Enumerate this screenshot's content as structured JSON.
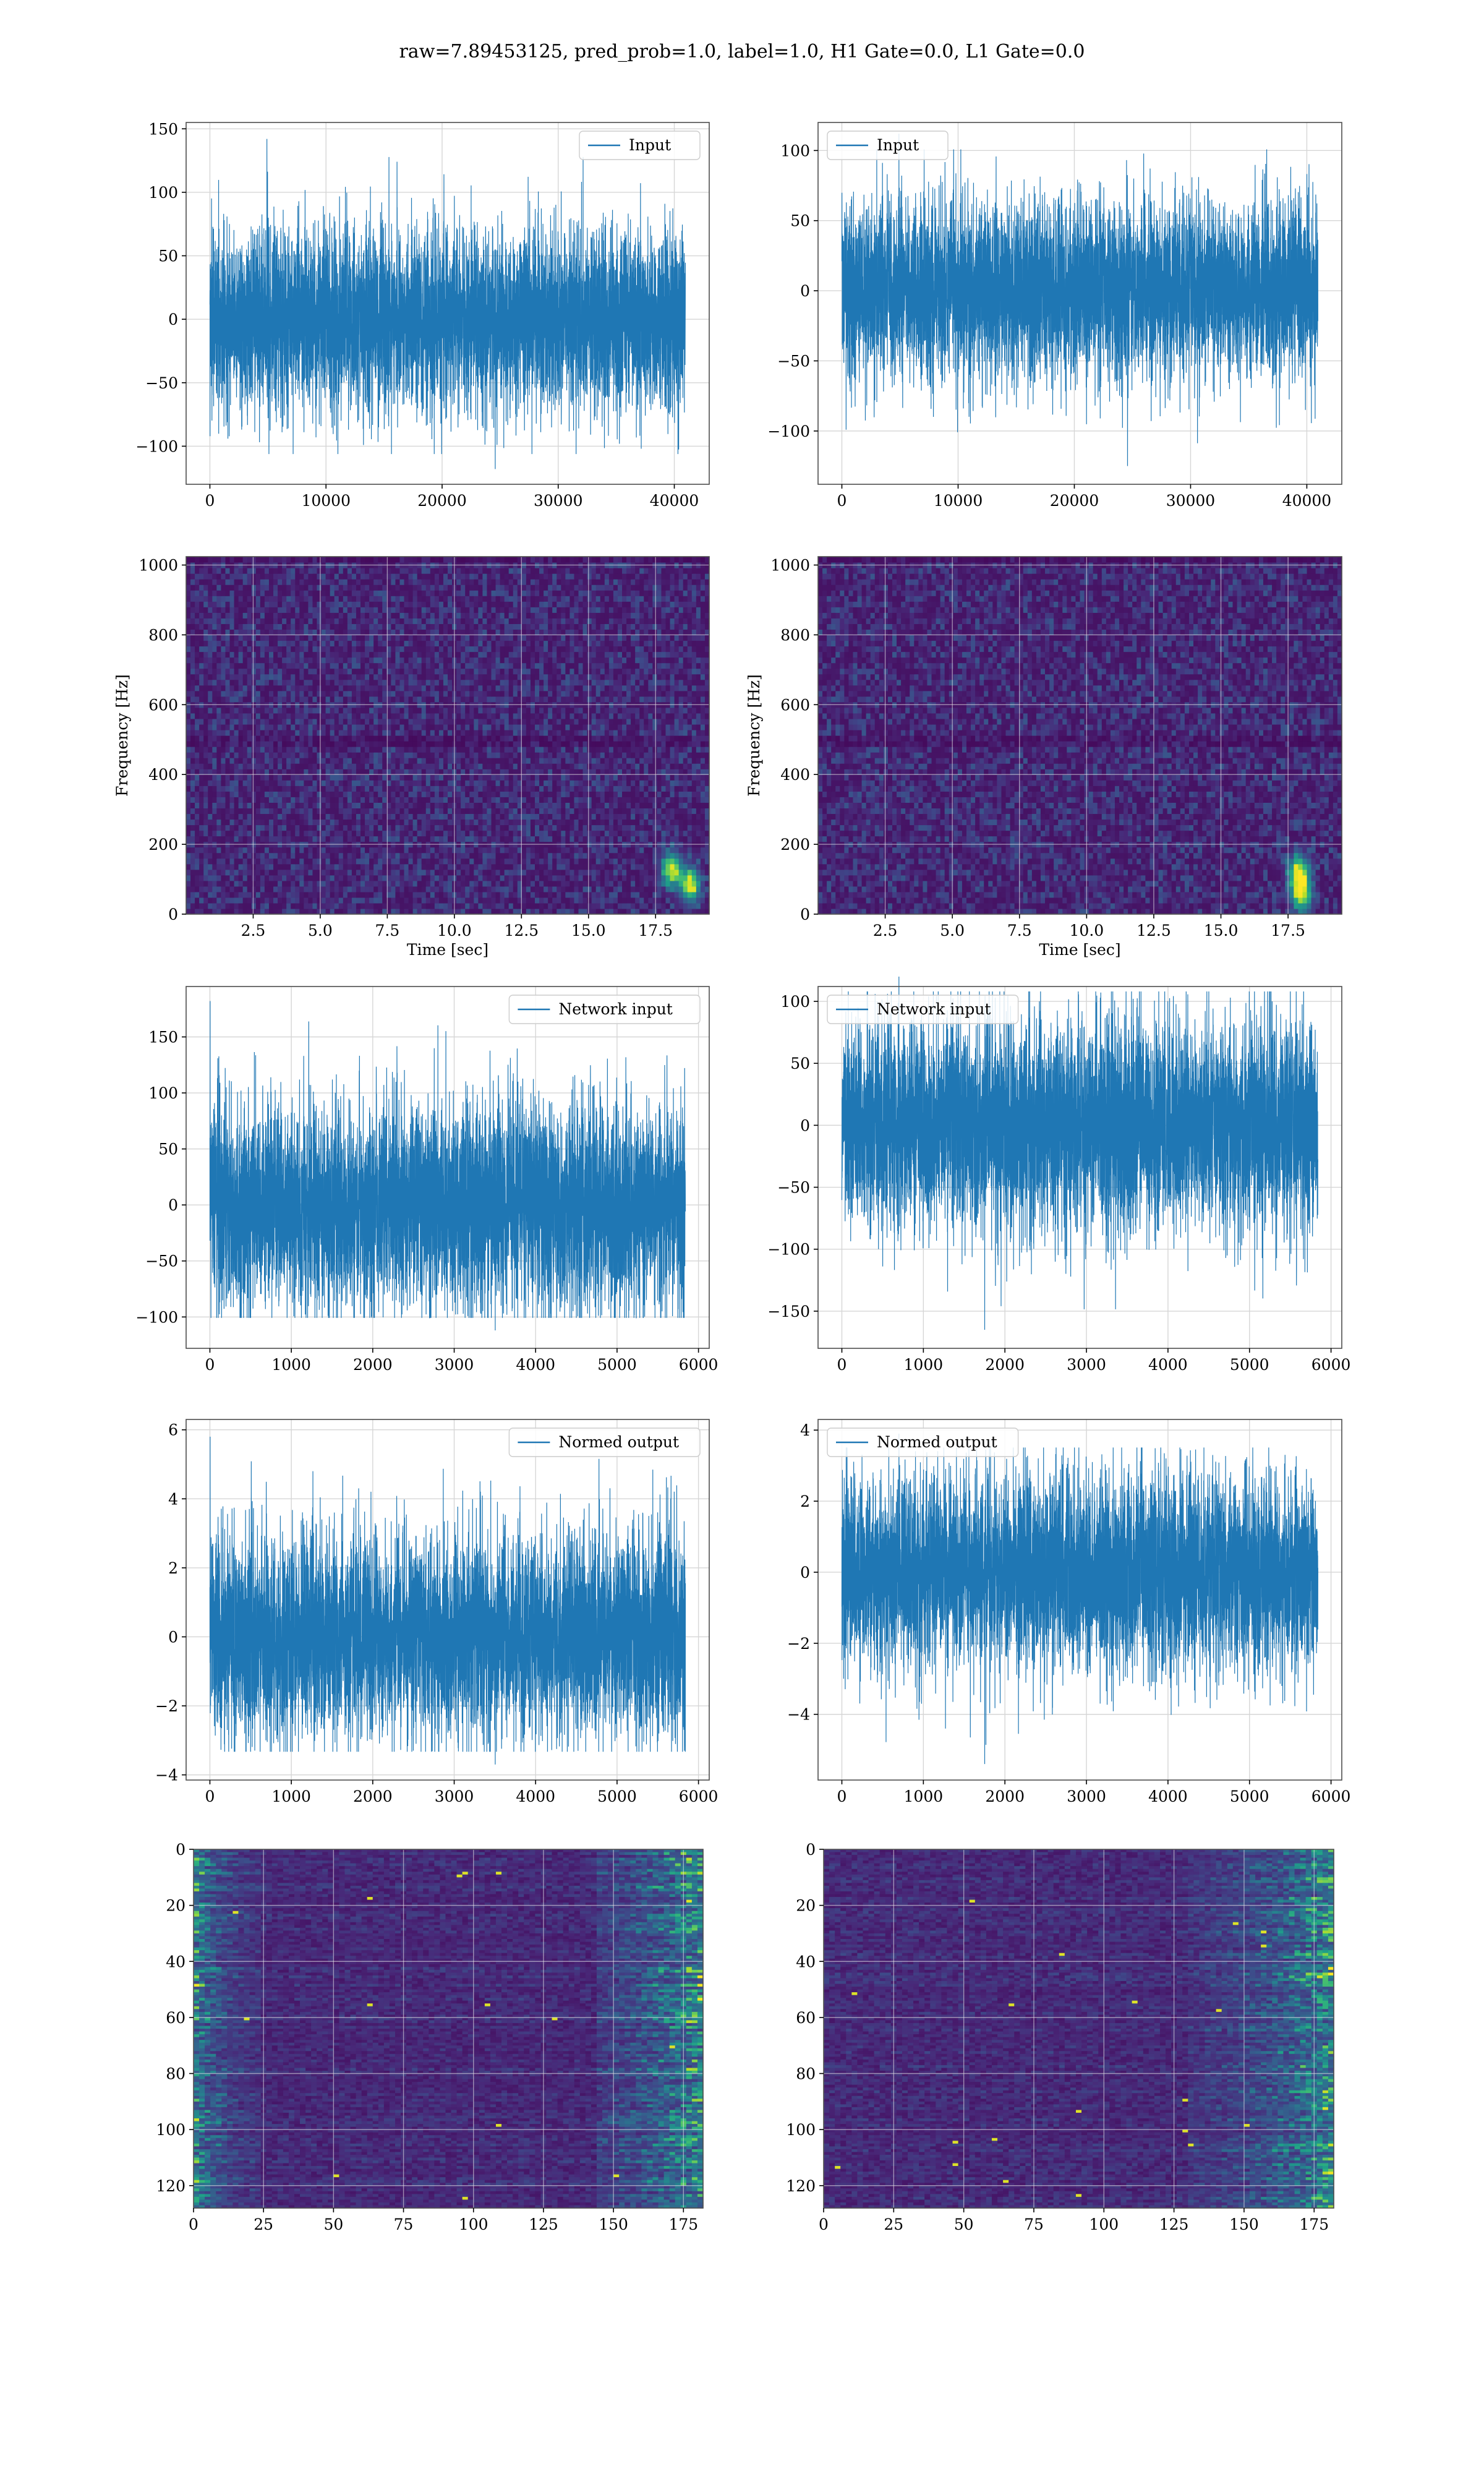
{
  "suptitle": "raw=7.89453125, pred_prob=1.0, label=1.0, H1 Gate=0.0, L1 Gate=0.0",
  "colors": {
    "line": "#1f77b4",
    "grid": "#d6d6d6",
    "spine": "#4d4d4d",
    "viridis": [
      "#440154",
      "#482878",
      "#3e4989",
      "#31688e",
      "#26828e",
      "#1f9e89",
      "#35b779",
      "#6ece58",
      "#b5de2b",
      "#fde725"
    ]
  },
  "chart_data": [
    {
      "id": "input-h1",
      "type": "line",
      "series": [
        {
          "name": "Input",
          "n_samples": 40960,
          "value_range": [
            -118,
            142
          ]
        }
      ],
      "xlim": [
        -2048,
        43008
      ],
      "ylim": [
        -130,
        155
      ],
      "xticks": [
        0,
        10000,
        20000,
        30000,
        40000
      ],
      "yticks": [
        -100,
        -50,
        0,
        50,
        100,
        150
      ],
      "xlabel": "",
      "ylabel": "",
      "legend": "upper right",
      "grid": true
    },
    {
      "id": "input-l1",
      "type": "line",
      "series": [
        {
          "name": "Input",
          "n_samples": 40960,
          "value_range": [
            -125,
            112
          ]
        }
      ],
      "xlim": [
        -2048,
        43008
      ],
      "ylim": [
        -138,
        120
      ],
      "xticks": [
        0,
        10000,
        20000,
        30000,
        40000
      ],
      "yticks": [
        -100,
        -50,
        0,
        50,
        100
      ],
      "xlabel": "",
      "ylabel": "",
      "legend": "upper left",
      "grid": true
    },
    {
      "id": "spectrogram-h1",
      "type": "heatmap",
      "xlim": [
        0,
        19.5
      ],
      "ylim": [
        0,
        1024
      ],
      "xticks": [
        2.5,
        5.0,
        7.5,
        10.0,
        12.5,
        15.0,
        17.5
      ],
      "yticks": [
        0,
        200,
        400,
        600,
        800,
        1000
      ],
      "xlabel": "Time [sec]",
      "ylabel": "Frequency [Hz]",
      "grid": true,
      "colormap": "viridis",
      "bright_spots": [
        {
          "t": 18.8,
          "f": 85
        },
        {
          "t": 18.1,
          "f": 130
        }
      ]
    },
    {
      "id": "spectrogram-l1",
      "type": "heatmap",
      "xlim": [
        0,
        19.5
      ],
      "ylim": [
        0,
        1024
      ],
      "xticks": [
        2.5,
        5.0,
        7.5,
        10.0,
        12.5,
        15.0,
        17.5
      ],
      "yticks": [
        0,
        200,
        400,
        600,
        800,
        1000
      ],
      "xlabel": "Time [sec]",
      "ylabel": "Frequency [Hz]",
      "grid": true,
      "colormap": "viridis",
      "bright_spots": [
        {
          "t": 17.9,
          "f": 120
        },
        {
          "t": 18.0,
          "f": 60
        }
      ]
    },
    {
      "id": "network-input-h1",
      "type": "line",
      "series": [
        {
          "name": "Network input",
          "n_samples": 5840,
          "value_range": [
            -112,
            182
          ]
        }
      ],
      "xlim": [
        -292,
        6132
      ],
      "ylim": [
        -128,
        195
      ],
      "xticks": [
        0,
        1000,
        2000,
        3000,
        4000,
        5000,
        6000
      ],
      "yticks": [
        -100,
        -50,
        0,
        50,
        100,
        150
      ],
      "xlabel": "",
      "ylabel": "",
      "legend": "upper right",
      "grid": true
    },
    {
      "id": "network-input-l1",
      "type": "line",
      "series": [
        {
          "name": "Network input",
          "n_samples": 5840,
          "value_range": [
            -165,
            120
          ]
        }
      ],
      "xlim": [
        -292,
        6132
      ],
      "ylim": [
        -180,
        112
      ],
      "xticks": [
        0,
        1000,
        2000,
        3000,
        4000,
        5000,
        6000
      ],
      "yticks": [
        -150,
        -100,
        -50,
        0,
        50,
        100
      ],
      "xlabel": "",
      "ylabel": "",
      "legend": "upper left",
      "grid": true
    },
    {
      "id": "normed-output-h1",
      "type": "line",
      "series": [
        {
          "name": "Normed output",
          "n_samples": 5840,
          "value_range": [
            -3.7,
            5.8
          ]
        }
      ],
      "xlim": [
        -292,
        6132
      ],
      "ylim": [
        -4.15,
        6.3
      ],
      "xticks": [
        0,
        1000,
        2000,
        3000,
        4000,
        5000,
        6000
      ],
      "yticks": [
        -4,
        -2,
        0,
        2,
        4,
        6
      ],
      "xlabel": "",
      "ylabel": "",
      "legend": "upper right",
      "grid": true
    },
    {
      "id": "normed-output-l1",
      "type": "line",
      "series": [
        {
          "name": "Normed output",
          "n_samples": 5840,
          "value_range": [
            -5.4,
            3.9
          ]
        }
      ],
      "xlim": [
        -292,
        6132
      ],
      "ylim": [
        -5.85,
        4.3
      ],
      "xticks": [
        0,
        1000,
        2000,
        3000,
        4000,
        5000,
        6000
      ],
      "yticks": [
        -4,
        -2,
        0,
        2,
        4
      ],
      "xlabel": "",
      "ylabel": "",
      "legend": "upper left",
      "grid": true
    },
    {
      "id": "feature-map-h1",
      "type": "heatmap",
      "xlim": [
        0,
        182
      ],
      "ylim": [
        128,
        0
      ],
      "xticks": [
        0,
        25,
        50,
        75,
        100,
        125,
        150,
        175
      ],
      "yticks": [
        0,
        20,
        40,
        60,
        80,
        100,
        120
      ],
      "xlabel": "",
      "ylabel": "",
      "grid": true,
      "colormap": "viridis",
      "activity_columns": [
        [
          0,
          25
        ],
        [
          145,
          182
        ]
      ]
    },
    {
      "id": "feature-map-l1",
      "type": "heatmap",
      "xlim": [
        0,
        182
      ],
      "ylim": [
        128,
        0
      ],
      "xticks": [
        0,
        25,
        50,
        75,
        100,
        125,
        150,
        175
      ],
      "yticks": [
        0,
        20,
        40,
        60,
        80,
        100,
        120
      ],
      "xlabel": "",
      "ylabel": "",
      "grid": true,
      "colormap": "viridis",
      "activity_columns": [
        [
          130,
          182
        ]
      ]
    }
  ]
}
